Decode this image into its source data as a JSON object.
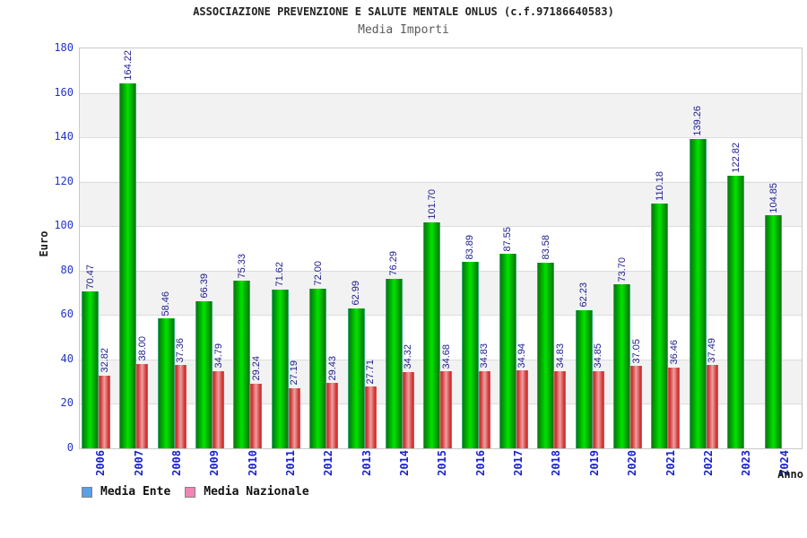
{
  "chart_data": {
    "type": "bar",
    "title": "ASSOCIAZIONE PREVENZIONE E SALUTE MENTALE ONLUS (c.f.97186640583)",
    "subtitle": "Media Importi",
    "xlabel": "Anno",
    "ylabel": "Euro",
    "ylim": [
      0,
      180
    ],
    "ytick_step": 20,
    "ytick_labels": [
      "0",
      "20",
      "40",
      "60",
      "80",
      "100",
      "120",
      "140",
      "160",
      "180"
    ],
    "grid": true,
    "band_fill": "alternating horizontal bands white/#f2f2f2 every 20 units",
    "legend_position": "bottom-left",
    "value_label_format": "2 decimals, rotated 90deg CCW above each bar",
    "categories": [
      "2006",
      "2007",
      "2008",
      "2009",
      "2010",
      "2011",
      "2012",
      "2013",
      "2014",
      "2015",
      "2016",
      "2017",
      "2018",
      "2019",
      "2020",
      "2021",
      "2022",
      "2023",
      "2024"
    ],
    "series": [
      {
        "name": "Media Ente",
        "bar_color_center": "#00e400",
        "bar_color_edge": "#0a7a0a",
        "values": [
          70.47,
          164.22,
          58.46,
          66.39,
          75.33,
          71.62,
          72.0,
          62.99,
          76.29,
          101.7,
          83.89,
          87.55,
          83.58,
          62.23,
          73.7,
          110.18,
          139.26,
          122.82,
          104.85
        ]
      },
      {
        "name": "Media Nazionale",
        "bar_color_center": "#efa0a0",
        "bar_color_edge": "#cc2a2a",
        "values": [
          32.82,
          38.0,
          37.36,
          34.79,
          29.24,
          27.19,
          29.43,
          27.71,
          34.32,
          34.68,
          34.83,
          34.94,
          34.83,
          34.85,
          37.05,
          36.46,
          37.49,
          null,
          null
        ]
      }
    ]
  },
  "legend": {
    "items": [
      {
        "label": "Media Ente",
        "swatch_color": "#5b9fe6"
      },
      {
        "label": "Media Nazionale",
        "swatch_color": "#ef86b3"
      }
    ]
  },
  "colors": {
    "axis_tick_text": "#2233cc",
    "year_label_text": "#1a22cc",
    "value_label_text": "#1c1c8f",
    "title_text": "#222222",
    "subtitle_text": "#5a5a5a",
    "gridline": "#dcdcdc",
    "plot_border": "#c9c9c9",
    "band_gray": "#f2f2f2"
  }
}
